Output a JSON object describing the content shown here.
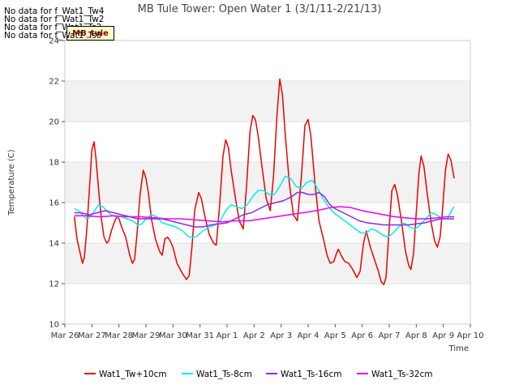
{
  "no_data_notes": [
    "No data for f_Wat1_Tw4",
    "No data for f_Wat1_Tw2",
    "No data for f_Wat1_Ts2",
    "No data for f_Wat1_Ts0"
  ],
  "site_label": "MB_tule",
  "chart_data": {
    "type": "line",
    "title": "MB Tule Tower: Open Water 1 (3/1/11-2/21/13)",
    "xlabel": "Time",
    "ylabel": "Temperature (C)",
    "x_unit": "days since Mar 26",
    "xlim": [
      0,
      15
    ],
    "ylim": [
      10,
      24
    ],
    "yticks": [
      10,
      12,
      14,
      16,
      18,
      20,
      22,
      24
    ],
    "xticks": [
      {
        "v": 0,
        "label": "Mar 26"
      },
      {
        "v": 1,
        "label": "Mar 27"
      },
      {
        "v": 2,
        "label": "Mar 28"
      },
      {
        "v": 3,
        "label": "Mar 29"
      },
      {
        "v": 4,
        "label": "Mar 30"
      },
      {
        "v": 5,
        "label": "Mar 31"
      },
      {
        "v": 6,
        "label": "Apr 1"
      },
      {
        "v": 7,
        "label": "Apr 2"
      },
      {
        "v": 8,
        "label": "Apr 3"
      },
      {
        "v": 9,
        "label": "Apr 4"
      },
      {
        "v": 10,
        "label": "Apr 5"
      },
      {
        "v": 11,
        "label": "Apr 6"
      },
      {
        "v": 12,
        "label": "Apr 7"
      },
      {
        "v": 13,
        "label": "Apr 8"
      },
      {
        "v": 14,
        "label": "Apr 9"
      },
      {
        "v": 15,
        "label": "Apr 10"
      }
    ],
    "bands": [
      [
        12,
        14
      ],
      [
        16,
        18
      ],
      [
        20,
        22
      ]
    ],
    "legend_position": "bottom",
    "series": [
      {
        "name": "Wat1_Tw+10cm",
        "color": "#ee0000",
        "points": [
          [
            0.35,
            15.3
          ],
          [
            0.45,
            14.2
          ],
          [
            0.55,
            13.6
          ],
          [
            0.65,
            13.0
          ],
          [
            0.72,
            13.3
          ],
          [
            0.8,
            14.5
          ],
          [
            0.9,
            16.5
          ],
          [
            1.0,
            18.6
          ],
          [
            1.08,
            19.0
          ],
          [
            1.15,
            18.2
          ],
          [
            1.25,
            16.6
          ],
          [
            1.35,
            15.2
          ],
          [
            1.45,
            14.3
          ],
          [
            1.55,
            14.0
          ],
          [
            1.62,
            14.1
          ],
          [
            1.72,
            14.6
          ],
          [
            1.82,
            15.0
          ],
          [
            1.92,
            15.3
          ],
          [
            2.0,
            15.2
          ],
          [
            2.1,
            14.8
          ],
          [
            2.25,
            14.3
          ],
          [
            2.4,
            13.4
          ],
          [
            2.5,
            13.0
          ],
          [
            2.58,
            13.2
          ],
          [
            2.68,
            14.6
          ],
          [
            2.78,
            16.4
          ],
          [
            2.9,
            17.6
          ],
          [
            3.0,
            17.2
          ],
          [
            3.1,
            16.4
          ],
          [
            3.2,
            15.2
          ],
          [
            3.35,
            14.2
          ],
          [
            3.5,
            13.6
          ],
          [
            3.6,
            13.4
          ],
          [
            3.7,
            14.2
          ],
          [
            3.8,
            14.3
          ],
          [
            3.9,
            14.1
          ],
          [
            4.0,
            13.8
          ],
          [
            4.15,
            13.0
          ],
          [
            4.35,
            12.5
          ],
          [
            4.5,
            12.2
          ],
          [
            4.6,
            12.4
          ],
          [
            4.7,
            13.8
          ],
          [
            4.8,
            15.6
          ],
          [
            4.95,
            16.5
          ],
          [
            5.05,
            16.2
          ],
          [
            5.2,
            15.2
          ],
          [
            5.35,
            14.4
          ],
          [
            5.5,
            14.0
          ],
          [
            5.6,
            13.9
          ],
          [
            5.72,
            15.8
          ],
          [
            5.85,
            18.3
          ],
          [
            5.95,
            19.1
          ],
          [
            6.05,
            18.7
          ],
          [
            6.15,
            17.6
          ],
          [
            6.3,
            16.3
          ],
          [
            6.45,
            15.1
          ],
          [
            6.6,
            14.7
          ],
          [
            6.72,
            16.8
          ],
          [
            6.85,
            19.5
          ],
          [
            6.95,
            20.3
          ],
          [
            7.05,
            20.1
          ],
          [
            7.15,
            19.3
          ],
          [
            7.3,
            17.7
          ],
          [
            7.45,
            16.2
          ],
          [
            7.6,
            15.6
          ],
          [
            7.72,
            17.3
          ],
          [
            7.85,
            20.4
          ],
          [
            7.95,
            22.1
          ],
          [
            8.05,
            21.3
          ],
          [
            8.15,
            19.4
          ],
          [
            8.3,
            17.0
          ],
          [
            8.45,
            15.4
          ],
          [
            8.6,
            15.1
          ],
          [
            8.75,
            17.3
          ],
          [
            8.88,
            19.8
          ],
          [
            9.0,
            20.1
          ],
          [
            9.1,
            19.3
          ],
          [
            9.25,
            17.0
          ],
          [
            9.4,
            15.1
          ],
          [
            9.55,
            14.3
          ],
          [
            9.7,
            13.4
          ],
          [
            9.82,
            13.0
          ],
          [
            9.95,
            13.1
          ],
          [
            10.05,
            13.5
          ],
          [
            10.12,
            13.7
          ],
          [
            10.22,
            13.4
          ],
          [
            10.35,
            13.1
          ],
          [
            10.5,
            13.0
          ],
          [
            10.65,
            12.7
          ],
          [
            10.8,
            12.3
          ],
          [
            10.92,
            12.6
          ],
          [
            11.05,
            14.0
          ],
          [
            11.15,
            14.6
          ],
          [
            11.3,
            13.8
          ],
          [
            11.45,
            13.2
          ],
          [
            11.6,
            12.6
          ],
          [
            11.7,
            12.1
          ],
          [
            11.8,
            11.95
          ],
          [
            11.88,
            12.3
          ],
          [
            12.0,
            14.8
          ],
          [
            12.1,
            16.6
          ],
          [
            12.2,
            16.9
          ],
          [
            12.3,
            16.4
          ],
          [
            12.45,
            15.1
          ],
          [
            12.6,
            13.6
          ],
          [
            12.72,
            12.9
          ],
          [
            12.8,
            12.7
          ],
          [
            12.9,
            13.5
          ],
          [
            13.0,
            15.5
          ],
          [
            13.1,
            17.5
          ],
          [
            13.18,
            18.3
          ],
          [
            13.28,
            17.8
          ],
          [
            13.42,
            16.3
          ],
          [
            13.55,
            15.0
          ],
          [
            13.68,
            14.1
          ],
          [
            13.78,
            13.8
          ],
          [
            13.88,
            14.3
          ],
          [
            13.98,
            15.8
          ],
          [
            14.08,
            17.6
          ],
          [
            14.18,
            18.4
          ],
          [
            14.28,
            18.1
          ],
          [
            14.4,
            17.2
          ]
        ]
      },
      {
        "name": "Wat1_Ts-8cm",
        "color": "#00eeee",
        "points": [
          [
            0.35,
            15.7
          ],
          [
            0.5,
            15.6
          ],
          [
            0.65,
            15.4
          ],
          [
            0.8,
            15.2
          ],
          [
            0.95,
            15.3
          ],
          [
            1.1,
            15.6
          ],
          [
            1.25,
            15.9
          ],
          [
            1.4,
            15.8
          ],
          [
            1.55,
            15.6
          ],
          [
            1.7,
            15.4
          ],
          [
            1.9,
            15.3
          ],
          [
            2.1,
            15.3
          ],
          [
            2.3,
            15.2
          ],
          [
            2.5,
            15.1
          ],
          [
            2.7,
            14.9
          ],
          [
            2.85,
            14.95
          ],
          [
            3.0,
            15.2
          ],
          [
            3.2,
            15.4
          ],
          [
            3.4,
            15.3
          ],
          [
            3.6,
            15.0
          ],
          [
            3.85,
            14.9
          ],
          [
            4.1,
            14.8
          ],
          [
            4.35,
            14.6
          ],
          [
            4.6,
            14.3
          ],
          [
            4.85,
            14.3
          ],
          [
            5.1,
            14.6
          ],
          [
            5.35,
            14.8
          ],
          [
            5.55,
            14.9
          ],
          [
            5.75,
            15.1
          ],
          [
            5.95,
            15.6
          ],
          [
            6.15,
            15.9
          ],
          [
            6.35,
            15.8
          ],
          [
            6.55,
            15.7
          ],
          [
            6.75,
            15.9
          ],
          [
            6.95,
            16.3
          ],
          [
            7.15,
            16.6
          ],
          [
            7.35,
            16.6
          ],
          [
            7.55,
            16.4
          ],
          [
            7.75,
            16.4
          ],
          [
            7.95,
            16.8
          ],
          [
            8.15,
            17.3
          ],
          [
            8.35,
            17.2
          ],
          [
            8.55,
            16.8
          ],
          [
            8.75,
            16.7
          ],
          [
            8.95,
            17.0
          ],
          [
            9.15,
            17.1
          ],
          [
            9.35,
            16.7
          ],
          [
            9.55,
            16.2
          ],
          [
            9.75,
            15.8
          ],
          [
            9.95,
            15.5
          ],
          [
            10.15,
            15.3
          ],
          [
            10.35,
            15.1
          ],
          [
            10.55,
            14.9
          ],
          [
            10.75,
            14.7
          ],
          [
            10.95,
            14.5
          ],
          [
            11.15,
            14.5
          ],
          [
            11.35,
            14.7
          ],
          [
            11.55,
            14.6
          ],
          [
            11.75,
            14.4
          ],
          [
            11.95,
            14.3
          ],
          [
            12.15,
            14.5
          ],
          [
            12.35,
            14.8
          ],
          [
            12.55,
            15.0
          ],
          [
            12.75,
            14.8
          ],
          [
            12.95,
            14.7
          ],
          [
            13.15,
            14.9
          ],
          [
            13.35,
            15.2
          ],
          [
            13.55,
            15.5
          ],
          [
            13.75,
            15.4
          ],
          [
            13.95,
            15.2
          ],
          [
            14.15,
            15.2
          ],
          [
            14.3,
            15.6
          ],
          [
            14.4,
            15.8
          ]
        ]
      },
      {
        "name": "Wat1_Ts-16cm",
        "color": "#8b2be2",
        "points": [
          [
            0.35,
            15.5
          ],
          [
            0.6,
            15.5
          ],
          [
            0.9,
            15.4
          ],
          [
            1.2,
            15.5
          ],
          [
            1.5,
            15.6
          ],
          [
            1.8,
            15.5
          ],
          [
            2.1,
            15.4
          ],
          [
            2.4,
            15.3
          ],
          [
            2.7,
            15.2
          ],
          [
            3.0,
            15.2
          ],
          [
            3.3,
            15.2
          ],
          [
            3.6,
            15.2
          ],
          [
            3.9,
            15.1
          ],
          [
            4.2,
            15.0
          ],
          [
            4.5,
            14.9
          ],
          [
            4.8,
            14.8
          ],
          [
            5.1,
            14.8
          ],
          [
            5.4,
            14.9
          ],
          [
            5.7,
            14.95
          ],
          [
            6.0,
            15.0
          ],
          [
            6.3,
            15.2
          ],
          [
            6.6,
            15.4
          ],
          [
            6.9,
            15.5
          ],
          [
            7.2,
            15.7
          ],
          [
            7.5,
            15.9
          ],
          [
            7.8,
            16.0
          ],
          [
            8.1,
            16.1
          ],
          [
            8.4,
            16.3
          ],
          [
            8.6,
            16.5
          ],
          [
            8.8,
            16.5
          ],
          [
            9.0,
            16.4
          ],
          [
            9.2,
            16.4
          ],
          [
            9.4,
            16.5
          ],
          [
            9.6,
            16.3
          ],
          [
            9.8,
            15.9
          ],
          [
            10.0,
            15.7
          ],
          [
            10.3,
            15.5
          ],
          [
            10.6,
            15.3
          ],
          [
            10.9,
            15.1
          ],
          [
            11.2,
            15.0
          ],
          [
            11.5,
            14.95
          ],
          [
            11.8,
            14.9
          ],
          [
            12.1,
            14.9
          ],
          [
            12.4,
            14.9
          ],
          [
            12.7,
            14.9
          ],
          [
            13.0,
            14.95
          ],
          [
            13.3,
            15.0
          ],
          [
            13.6,
            15.1
          ],
          [
            13.9,
            15.2
          ],
          [
            14.2,
            15.2
          ],
          [
            14.4,
            15.2
          ]
        ]
      },
      {
        "name": "Wat1_Ts-32cm",
        "color": "#ee00ee",
        "points": [
          [
            0.35,
            15.35
          ],
          [
            0.8,
            15.35
          ],
          [
            1.3,
            15.3
          ],
          [
            1.8,
            15.35
          ],
          [
            2.3,
            15.3
          ],
          [
            2.8,
            15.3
          ],
          [
            3.3,
            15.25
          ],
          [
            3.8,
            15.2
          ],
          [
            4.3,
            15.2
          ],
          [
            4.8,
            15.15
          ],
          [
            5.3,
            15.1
          ],
          [
            5.8,
            15.05
          ],
          [
            6.3,
            15.1
          ],
          [
            6.8,
            15.1
          ],
          [
            7.3,
            15.2
          ],
          [
            7.8,
            15.3
          ],
          [
            8.3,
            15.4
          ],
          [
            8.8,
            15.5
          ],
          [
            9.3,
            15.6
          ],
          [
            9.8,
            15.75
          ],
          [
            10.2,
            15.8
          ],
          [
            10.6,
            15.75
          ],
          [
            11.0,
            15.6
          ],
          [
            11.4,
            15.5
          ],
          [
            11.8,
            15.4
          ],
          [
            12.2,
            15.3
          ],
          [
            12.6,
            15.25
          ],
          [
            13.0,
            15.2
          ],
          [
            13.4,
            15.2
          ],
          [
            13.8,
            15.25
          ],
          [
            14.1,
            15.3
          ],
          [
            14.4,
            15.3
          ]
        ]
      }
    ]
  }
}
